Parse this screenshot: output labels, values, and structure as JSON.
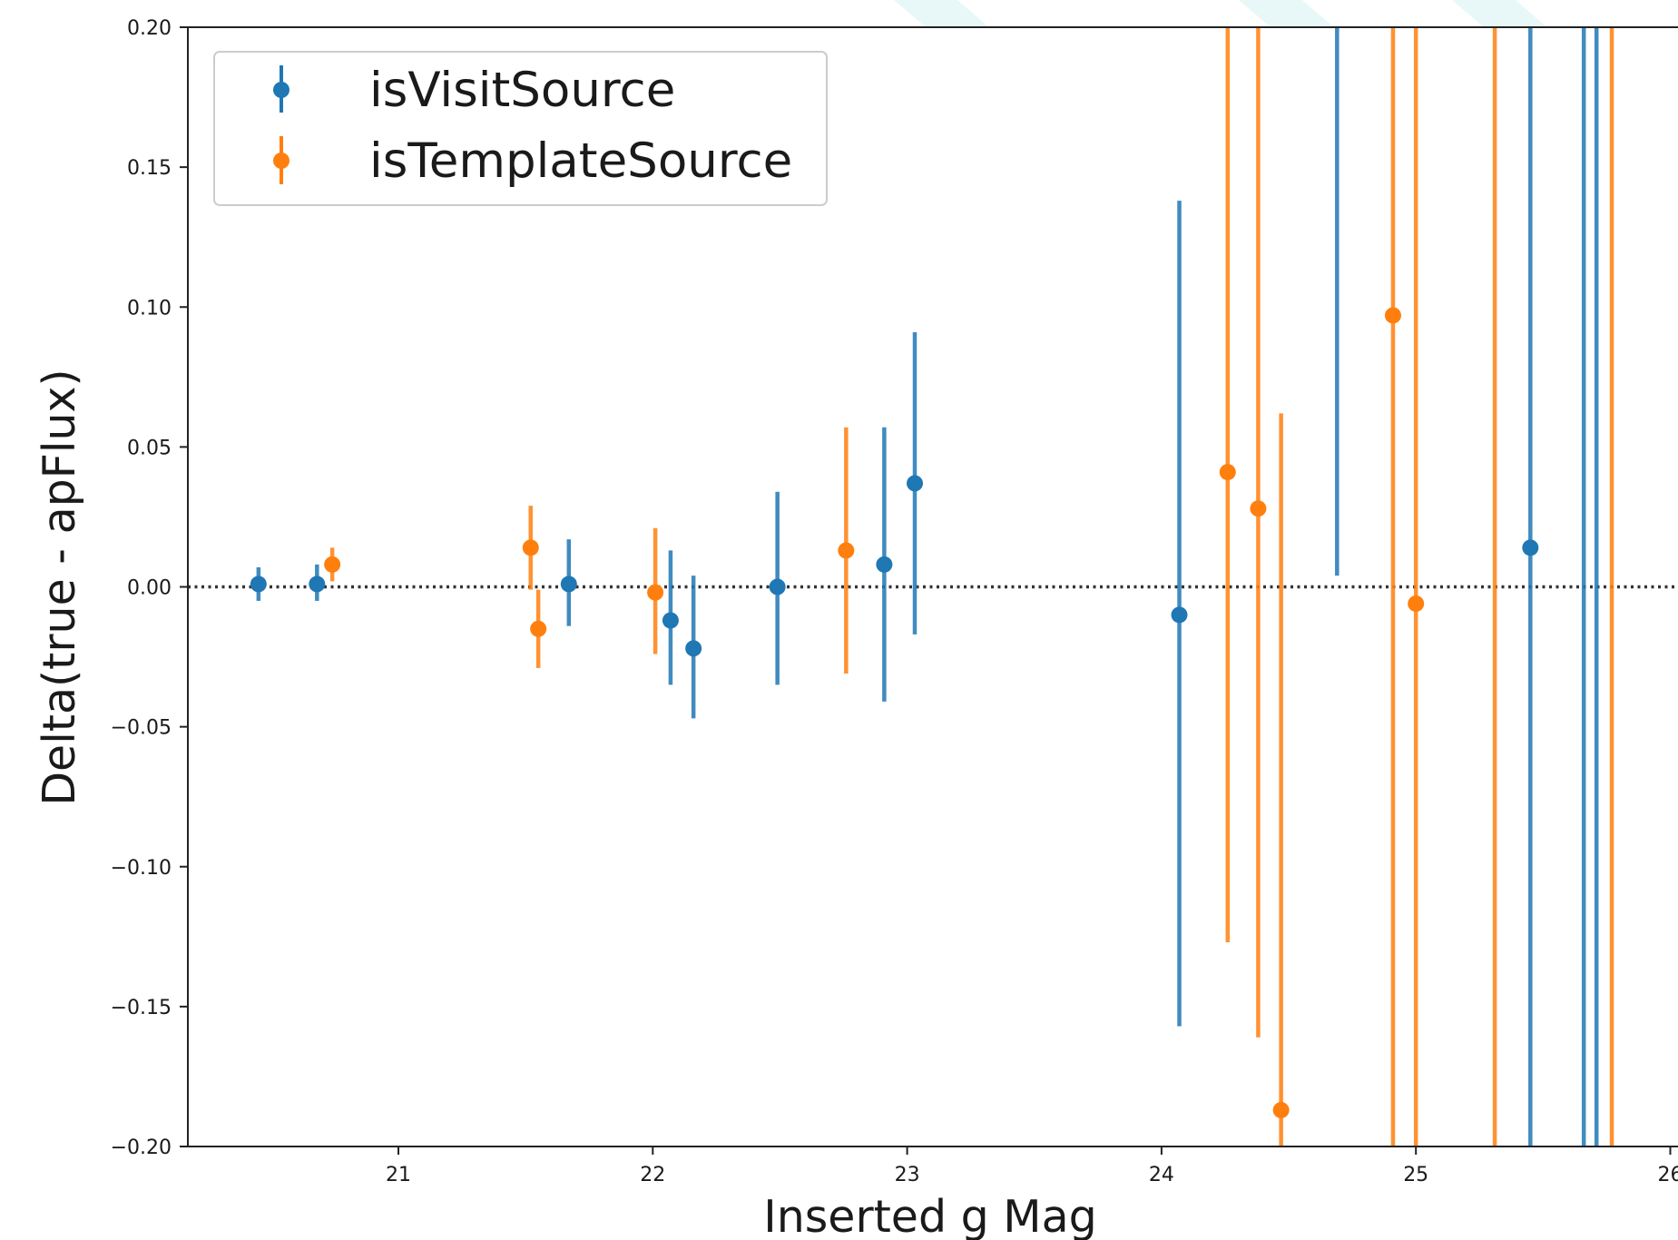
{
  "chart_data": {
    "type": "scatter",
    "xlabel": "Inserted g Mag",
    "ylabel": "Delta(true - apFlux)",
    "xlim": [
      20.18,
      26.0
    ],
    "ylim": [
      -0.2,
      0.2
    ],
    "x_ticks": [
      21,
      22,
      23,
      24,
      25,
      26
    ],
    "x_tick_labels": [
      "21",
      "22",
      "23",
      "24",
      "25",
      "26"
    ],
    "y_ticks": [
      -0.2,
      -0.15,
      -0.1,
      -0.05,
      0.0,
      0.05,
      0.1,
      0.15,
      0.2
    ],
    "y_tick_labels": [
      "−0.20",
      "−0.15",
      "−0.10",
      "−0.05",
      "0.00",
      "0.05",
      "0.10",
      "0.15",
      "0.20"
    ],
    "reference_line": {
      "y": 0.0,
      "style": "dotted",
      "color": "#333333"
    },
    "grid": false,
    "legend_position": "top-left",
    "colors": {
      "isVisitSource": "#1f77b4",
      "isTemplateSource": "#ff7f0e"
    },
    "series": [
      {
        "name": "isVisitSource",
        "color": "#1f77b4",
        "points": [
          {
            "x": 20.45,
            "y": 0.001,
            "err_low": 0.006,
            "err_high": 0.006
          },
          {
            "x": 20.68,
            "y": 0.001,
            "err_low": 0.006,
            "err_high": 0.007
          },
          {
            "x": 21.67,
            "y": 0.001,
            "err_low": 0.015,
            "err_high": 0.016
          },
          {
            "x": 22.07,
            "y": -0.012,
            "err_low": 0.023,
            "err_high": 0.025
          },
          {
            "x": 22.16,
            "y": -0.022,
            "err_low": 0.025,
            "err_high": 0.026
          },
          {
            "x": 22.49,
            "y": 0.0,
            "err_low": 0.035,
            "err_high": 0.034
          },
          {
            "x": 22.91,
            "y": 0.008,
            "err_low": 0.049,
            "err_high": 0.049
          },
          {
            "x": 23.03,
            "y": 0.037,
            "err_low": 0.054,
            "err_high": 0.054
          },
          {
            "x": 24.07,
            "y": -0.01,
            "err_low": 0.147,
            "err_high": 0.148
          },
          {
            "x": 24.69,
            "y": null,
            "err_low": null,
            "err_high": null,
            "bar_from": 0.004,
            "bar_to": 0.2
          },
          {
            "x": 25.45,
            "y": 0.014,
            "err_low": 0.214,
            "err_high": 0.186
          },
          {
            "x": 25.66,
            "y": null,
            "err_low": null,
            "err_high": null,
            "bar_from": -0.2,
            "bar_to": 0.2
          },
          {
            "x": 25.71,
            "y": null,
            "err_low": null,
            "err_high": null,
            "bar_from": -0.2,
            "bar_to": 0.2
          }
        ]
      },
      {
        "name": "isTemplateSource",
        "color": "#ff7f0e",
        "points": [
          {
            "x": 20.74,
            "y": 0.008,
            "err_low": 0.006,
            "err_high": 0.006
          },
          {
            "x": 21.52,
            "y": 0.014,
            "err_low": 0.015,
            "err_high": 0.015
          },
          {
            "x": 21.55,
            "y": -0.015,
            "err_low": 0.014,
            "err_high": 0.014
          },
          {
            "x": 22.01,
            "y": -0.002,
            "err_low": 0.022,
            "err_high": 0.023
          },
          {
            "x": 22.76,
            "y": 0.013,
            "err_low": 0.044,
            "err_high": 0.044
          },
          {
            "x": 24.26,
            "y": 0.041,
            "err_low": 0.168,
            "err_high": 0.159
          },
          {
            "x": 24.38,
            "y": 0.028,
            "err_low": 0.189,
            "err_high": 0.172
          },
          {
            "x": 24.47,
            "y": -0.187,
            "err_low": 0.013,
            "err_high": 0.249
          },
          {
            "x": 24.91,
            "y": 0.097,
            "err_low": 0.297,
            "err_high": 0.103
          },
          {
            "x": 25.0,
            "y": -0.006,
            "err_low": 0.194,
            "err_high": 0.206
          },
          {
            "x": 25.31,
            "y": null,
            "err_low": null,
            "err_high": null,
            "bar_from": -0.2,
            "bar_to": 0.2
          },
          {
            "x": 25.77,
            "y": null,
            "err_low": null,
            "err_high": null,
            "bar_from": -0.2,
            "bar_to": 0.2
          }
        ]
      }
    ]
  }
}
